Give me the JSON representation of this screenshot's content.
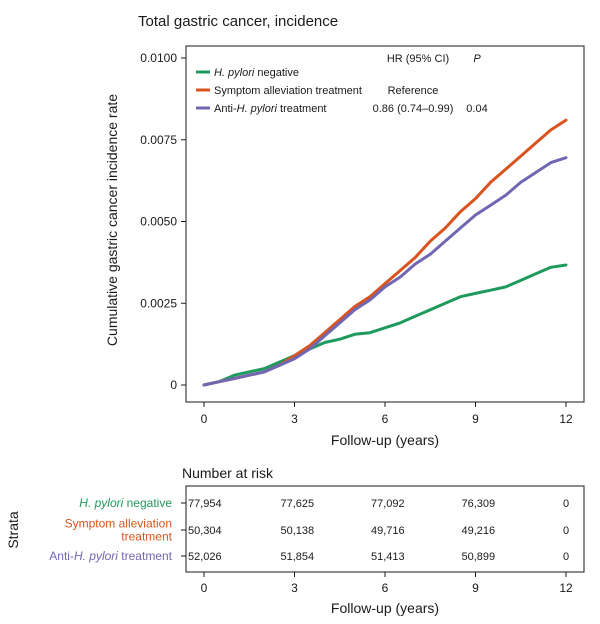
{
  "chart_data": [
    {
      "type": "line",
      "title": "Total gastric cancer, incidence",
      "xlabel": "Follow-up (years)",
      "ylabel": "Cumulative gastric cancer incidence rate",
      "xlim": [
        0,
        12
      ],
      "ylim": [
        0,
        0.01
      ],
      "xticks": [
        "0",
        "3",
        "6",
        "9",
        "12"
      ],
      "xtick_values": [
        0,
        3,
        6,
        9,
        12
      ],
      "yticks": [
        "0",
        "0.0025",
        "0.0050",
        "0.0075",
        "0.0100"
      ],
      "ytick_values": [
        0,
        0.0025,
        0.005,
        0.0075,
        0.01
      ],
      "grid": false,
      "legend_position": "top-left",
      "hr_header": {
        "hr": "HR (95% CI)",
        "p": "P"
      },
      "series": [
        {
          "name": "H. pylori negative",
          "name_parts": [
            {
              "t": "H. pylori",
              "i": true
            },
            {
              "t": " negative",
              "i": false
            }
          ],
          "color": "#1e9a5c",
          "hr": "",
          "p": "",
          "x": [
            0,
            0.5,
            1,
            1.5,
            2,
            2.5,
            3,
            3.5,
            4,
            4.5,
            5,
            5.5,
            6,
            6.5,
            7,
            7.5,
            8,
            8.5,
            9,
            9.5,
            10,
            10.5,
            11,
            11.5,
            12
          ],
          "y": [
            0,
            0.0001,
            0.0003,
            0.0004,
            0.0005,
            0.0007,
            0.0009,
            0.0011,
            0.0013,
            0.0014,
            0.00155,
            0.0016,
            0.00175,
            0.0019,
            0.0021,
            0.0023,
            0.0025,
            0.0027,
            0.0028,
            0.0029,
            0.003,
            0.0032,
            0.0034,
            0.0036,
            0.00367
          ]
        },
        {
          "name": "Symptom alleviation treatment",
          "name_parts": [
            {
              "t": "Symptom alleviation treatment",
              "i": false
            }
          ],
          "color": "#d9531e",
          "hr": "Reference",
          "p": "",
          "x": [
            0,
            0.5,
            1,
            1.5,
            2,
            2.5,
            3,
            3.5,
            4,
            4.5,
            5,
            5.5,
            6,
            6.5,
            7,
            7.5,
            8,
            8.5,
            9,
            9.5,
            10,
            10.5,
            11,
            11.5,
            12
          ],
          "y": [
            0,
            0.0001,
            0.0002,
            0.0003,
            0.0004,
            0.0006,
            0.0009,
            0.0012,
            0.0016,
            0.002,
            0.0024,
            0.0027,
            0.0031,
            0.0035,
            0.0039,
            0.0044,
            0.0048,
            0.0053,
            0.0057,
            0.0062,
            0.0066,
            0.007,
            0.0074,
            0.0078,
            0.0081
          ]
        },
        {
          "name": "Anti-H. pylori treatment",
          "name_parts": [
            {
              "t": "Anti-",
              "i": false
            },
            {
              "t": "H. pylori",
              "i": true
            },
            {
              "t": " treatment",
              "i": false
            }
          ],
          "color": "#7067b3",
          "hr": "0.86 (0.74–0.99)",
          "p": "0.04",
          "x": [
            0,
            0.5,
            1,
            1.5,
            2,
            2.5,
            3,
            3.5,
            4,
            4.5,
            5,
            5.5,
            6,
            6.5,
            7,
            7.5,
            8,
            8.5,
            9,
            9.5,
            10,
            10.5,
            11,
            11.5,
            12
          ],
          "y": [
            0,
            0.0001,
            0.0002,
            0.0003,
            0.0004,
            0.0006,
            0.0008,
            0.0011,
            0.0015,
            0.0019,
            0.0023,
            0.0026,
            0.003,
            0.0033,
            0.0037,
            0.004,
            0.0044,
            0.0048,
            0.0052,
            0.0055,
            0.0058,
            0.0062,
            0.0065,
            0.0068,
            0.00695
          ]
        }
      ]
    },
    {
      "type": "table",
      "title": "Number at risk",
      "xlabel": "Follow-up (years)",
      "row_header": "Strata",
      "xticks": [
        "0",
        "3",
        "6",
        "9",
        "12"
      ],
      "xtick_values": [
        0,
        3,
        6,
        9,
        12
      ],
      "rows": [
        {
          "label_lines": [
            [
              {
                "t": "H. pylori",
                "i": true
              },
              {
                "t": " negative",
                "i": false
              }
            ]
          ],
          "color": "#1e9a5c",
          "values": [
            "77,954",
            "77,625",
            "77,092",
            "76,309",
            "0"
          ]
        },
        {
          "label_lines": [
            [
              {
                "t": "Symptom alleviation",
                "i": false
              }
            ],
            [
              {
                "t": "treatment",
                "i": false
              }
            ]
          ],
          "color": "#d9531e",
          "values": [
            "50,304",
            "50,138",
            "49,716",
            "49,216",
            "0"
          ]
        },
        {
          "label_lines": [
            [
              {
                "t": "Anti-",
                "i": false
              },
              {
                "t": "H. pylori",
                "i": true
              },
              {
                "t": " treatment",
                "i": false
              }
            ]
          ],
          "color": "#7067b3",
          "values": [
            "52,026",
            "51,854",
            "51,413",
            "50,899",
            "0"
          ]
        }
      ]
    }
  ]
}
